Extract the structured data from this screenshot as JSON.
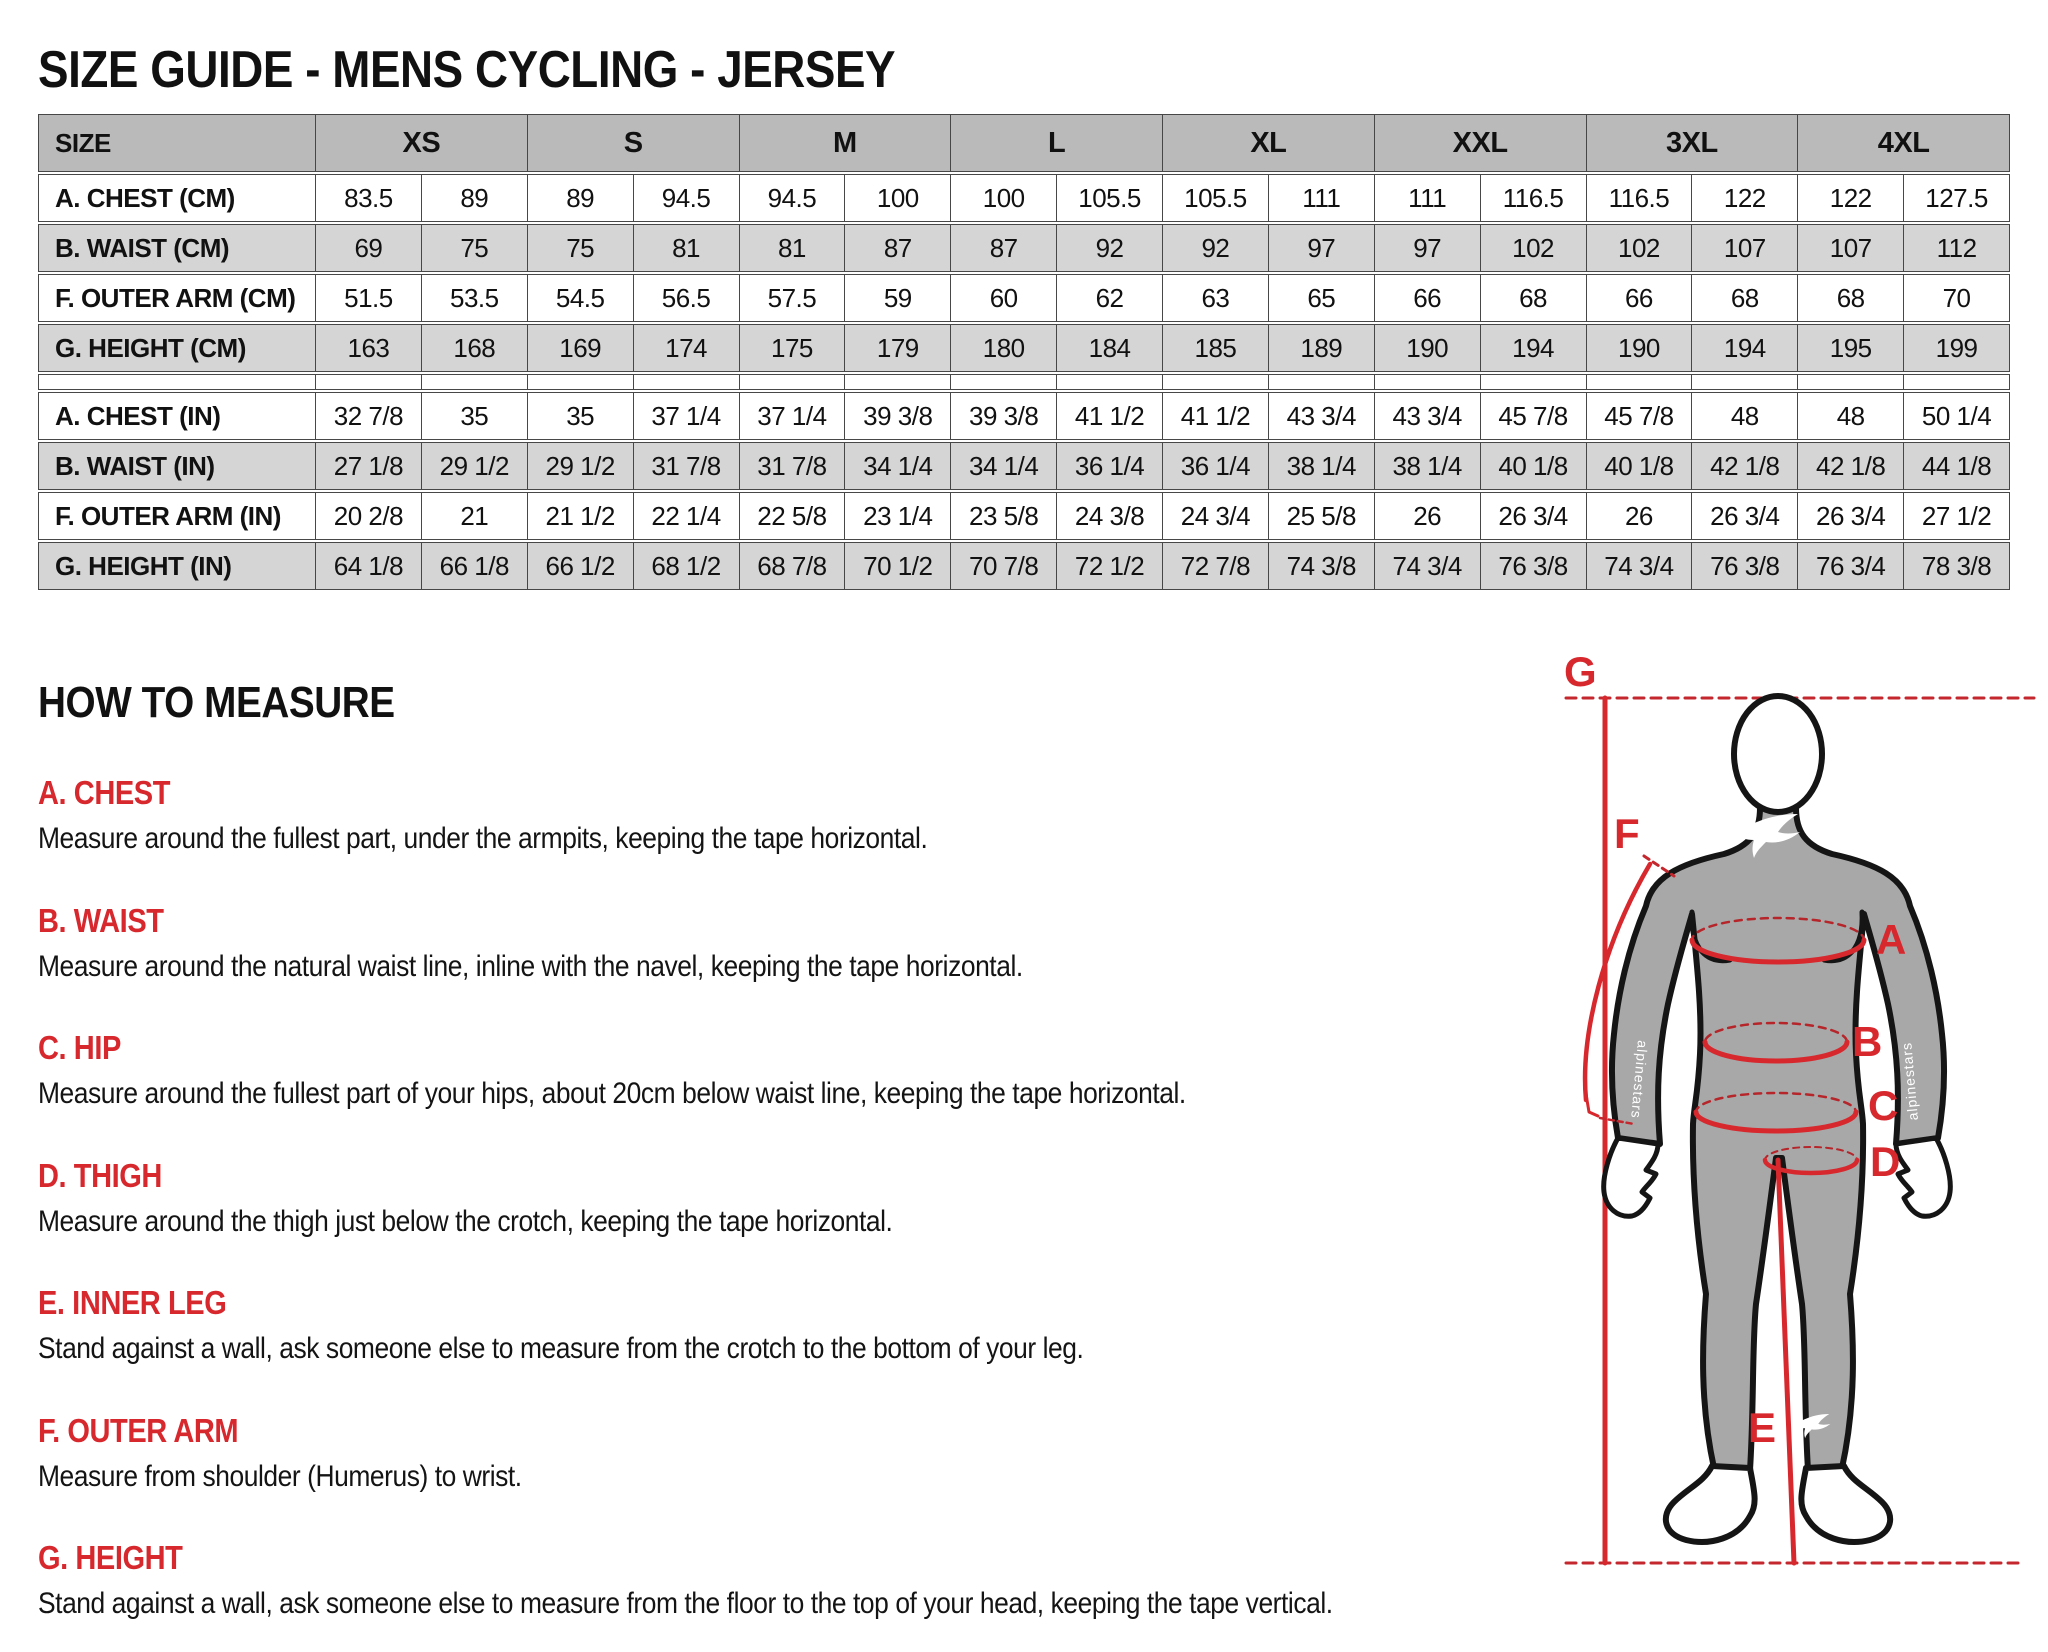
{
  "page": {
    "title_regular": "SIZE GUIDE ",
    "title_bold": "- MENS CYCLING - JERSEY"
  },
  "size_table": {
    "header": {
      "size_label": "SIZE",
      "sizes": [
        "XS",
        "S",
        "M",
        "L",
        "XL",
        "XXL",
        "3XL",
        "4XL"
      ]
    },
    "rows_cm": [
      {
        "label": "A. CHEST (CM)",
        "values": [
          "83.5",
          "89",
          "89",
          "94.5",
          "94.5",
          "100",
          "100",
          "105.5",
          "105.5",
          "111",
          "111",
          "116.5",
          "116.5",
          "122",
          "122",
          "127.5"
        ]
      },
      {
        "label": "B. WAIST (CM)",
        "values": [
          "69",
          "75",
          "75",
          "81",
          "81",
          "87",
          "87",
          "92",
          "92",
          "97",
          "97",
          "102",
          "102",
          "107",
          "107",
          "112"
        ]
      },
      {
        "label": "F. OUTER ARM (CM)",
        "values": [
          "51.5",
          "53.5",
          "54.5",
          "56.5",
          "57.5",
          "59",
          "60",
          "62",
          "63",
          "65",
          "66",
          "68",
          "66",
          "68",
          "68",
          "70"
        ]
      },
      {
        "label": "G. HEIGHT (CM)",
        "values": [
          "163",
          "168",
          "169",
          "174",
          "175",
          "179",
          "180",
          "184",
          "185",
          "189",
          "190",
          "194",
          "190",
          "194",
          "195",
          "199"
        ]
      }
    ],
    "rows_in": [
      {
        "label": "A. CHEST (IN)",
        "values": [
          "32 7/8",
          "35",
          "35",
          "37 1/4",
          "37 1/4",
          "39 3/8",
          "39 3/8",
          "41 1/2",
          "41 1/2",
          "43 3/4",
          "43 3/4",
          "45 7/8",
          "45 7/8",
          "48",
          "48",
          "50 1/4"
        ]
      },
      {
        "label": "B. WAIST (IN)",
        "values": [
          "27 1/8",
          "29 1/2",
          "29 1/2",
          "31 7/8",
          "31 7/8",
          "34 1/4",
          "34 1/4",
          "36 1/4",
          "36 1/4",
          "38 1/4",
          "38 1/4",
          "40 1/8",
          "40 1/8",
          "42 1/8",
          "42 1/8",
          "44 1/8"
        ]
      },
      {
        "label": "F. OUTER ARM (IN)",
        "values": [
          "20 2/8",
          "21",
          "21 1/2",
          "22 1/4",
          "22 5/8",
          "23 1/4",
          "23 5/8",
          "24 3/8",
          "24 3/4",
          "25 5/8",
          "26",
          "26 3/4",
          "26",
          "26 3/4",
          "26 3/4",
          "27 1/2"
        ]
      },
      {
        "label": "G. HEIGHT (IN)",
        "values": [
          "64 1/8",
          "66 1/8",
          "66 1/2",
          "68 1/2",
          "68 7/8",
          "70 1/2",
          "70 7/8",
          "72 1/2",
          "72 7/8",
          "74 3/8",
          "74 3/4",
          "76 3/8",
          "74 3/4",
          "76 3/8",
          "76 3/4",
          "78 3/8"
        ]
      }
    ]
  },
  "how_to_measure": {
    "title": "HOW TO MEASURE",
    "items": [
      {
        "heading": "A. CHEST",
        "text": "Measure around the fullest part, under the armpits, keeping the tape horizontal."
      },
      {
        "heading": "B. WAIST",
        "text": "Measure around the natural waist line, inline with the navel, keeping the tape horizontal."
      },
      {
        "heading": "C. HIP",
        "text": "Measure around the fullest part of your hips, about 20cm below waist line, keeping the tape horizontal."
      },
      {
        "heading": "D. THIGH",
        "text": "Measure around the thigh just below the crotch, keeping the tape horizontal."
      },
      {
        "heading": "E. INNER LEG",
        "text": "Stand against a wall, ask someone else to measure from the crotch to the bottom of your leg."
      },
      {
        "heading": "F. OUTER ARM",
        "text": "Measure from shoulder (Humerus) to wrist."
      },
      {
        "heading": "G. HEIGHT",
        "text": "Stand against a wall, ask someone else to measure from the floor to the top of your head, keeping the tape vertical."
      }
    ]
  },
  "diagram": {
    "labels": {
      "A": "A",
      "B": "B",
      "C": "C",
      "D": "D",
      "E": "E",
      "F": "F",
      "G": "G"
    },
    "sleeve_text": "alpinestars"
  },
  "colors": {
    "accent_red": "#d7282e",
    "table_header_bg": "#b9bab9",
    "table_alt_row_bg": "#d4d5d4",
    "table_border": "#474747",
    "body_fill": "#a8a8a8",
    "outline": "#151515"
  }
}
